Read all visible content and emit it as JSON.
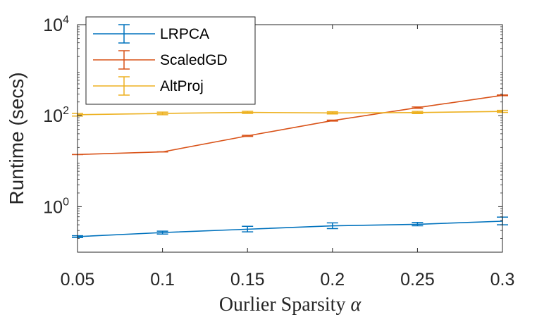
{
  "chart_data": {
    "type": "line",
    "title": "",
    "xlabel": "Ourlier Sparsity",
    "xlabel_symbol": "α",
    "ylabel": "Runtime (secs)",
    "yscale": "log",
    "xlim": [
      0.05,
      0.3
    ],
    "ylim": [
      0.1,
      10000
    ],
    "x": [
      0.05,
      0.1,
      0.15,
      0.2,
      0.25,
      0.3
    ],
    "xtick_labels": [
      "0.05",
      "0.1",
      "0.15",
      "0.2",
      "0.25",
      "0.3"
    ],
    "ytick_labels": [
      {
        "base": "10",
        "exp": "0",
        "value": 1
      },
      {
        "base": "10",
        "exp": "2",
        "value": 100
      },
      {
        "base": "10",
        "exp": "4",
        "value": 10000
      }
    ],
    "legend_position": "top-left",
    "series": [
      {
        "name": "LRPCA",
        "color": "#0072BD",
        "values": [
          0.22,
          0.27,
          0.32,
          0.38,
          0.41,
          0.48
        ],
        "err_low": [
          0.21,
          0.25,
          0.28,
          0.33,
          0.38,
          0.4
        ],
        "err_high": [
          0.23,
          0.29,
          0.37,
          0.44,
          0.45,
          0.59
        ]
      },
      {
        "name": "ScaledGD",
        "color": "#D95319",
        "values": [
          14,
          16,
          36,
          78,
          150,
          280
        ],
        "err_low": [
          14,
          16,
          35,
          76,
          145,
          275
        ],
        "err_high": [
          14,
          16,
          37,
          80,
          155,
          285
        ]
      },
      {
        "name": "AltProj",
        "color": "#EDB120",
        "values": [
          105,
          112,
          118,
          115,
          117,
          124
        ],
        "err_low": [
          98,
          105,
          112,
          109,
          111,
          118
        ],
        "err_high": [
          112,
          120,
          125,
          122,
          124,
          131
        ]
      }
    ]
  }
}
